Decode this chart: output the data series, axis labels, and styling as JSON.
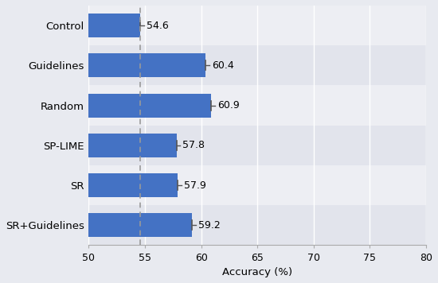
{
  "categories": [
    "Control",
    "Guidelines",
    "Random",
    "SP-LIME",
    "SR",
    "SR+Guidelines"
  ],
  "values": [
    54.6,
    60.4,
    60.9,
    57.8,
    57.9,
    59.2
  ],
  "bar_color": "#4472C4",
  "dashed_line_x": 54.6,
  "xlim": [
    50,
    80
  ],
  "xticks": [
    50,
    55,
    60,
    65,
    70,
    75,
    80
  ],
  "xlabel": "Accuracy (%)",
  "background_color": "#E8EAF0",
  "row_bg_light": "#EDEEF3",
  "row_bg_dark": "#E2E4EC",
  "grid_color": "#FFFFFF",
  "bar_height": 0.6,
  "value_fontsize": 9,
  "label_fontsize": 9.5,
  "tick_fontsize": 9,
  "xlabel_fontsize": 9.5
}
